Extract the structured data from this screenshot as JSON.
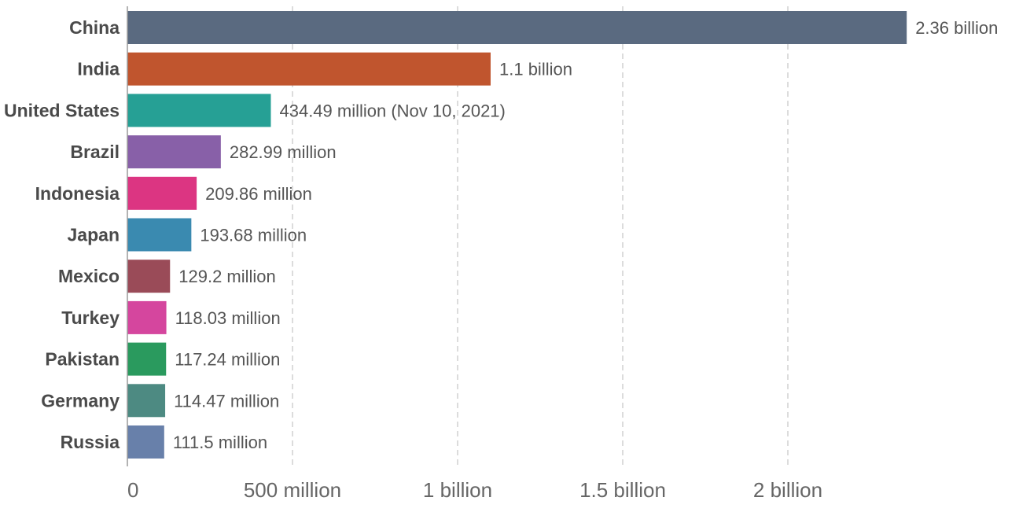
{
  "chart_data": {
    "type": "bar",
    "orientation": "horizontal",
    "title": "",
    "xlabel": "",
    "ylabel": "",
    "xlim": [
      0,
      2360000000
    ],
    "grid": true,
    "categories": [
      "China",
      "India",
      "United States",
      "Brazil",
      "Indonesia",
      "Japan",
      "Mexico",
      "Turkey",
      "Pakistan",
      "Germany",
      "Russia"
    ],
    "values": [
      2360000000,
      1100000000,
      434490000,
      282990000,
      209860000,
      193680000,
      129200000,
      118030000,
      117240000,
      114470000,
      111500000
    ],
    "value_labels": [
      "2.36 billion",
      "1.1 billion",
      "434.49 million (Nov 10, 2021)",
      "282.99 million",
      "209.86 million",
      "193.68 million",
      "129.2 million",
      "118.03 million",
      "117.24 million",
      "114.47 million",
      "111.5 million"
    ],
    "colors": [
      "#5a6a80",
      "#c0552e",
      "#26a095",
      "#8860a8",
      "#dc3582",
      "#3a8ab0",
      "#9a4b58",
      "#d5469e",
      "#2a9a5e",
      "#4d8a82",
      "#6880aa"
    ],
    "ticks": [
      0,
      500000000,
      1000000000,
      1500000000,
      2000000000
    ],
    "tick_labels": [
      "0",
      "500 million",
      "1 billion",
      "1.5 billion",
      "2 billion"
    ]
  }
}
